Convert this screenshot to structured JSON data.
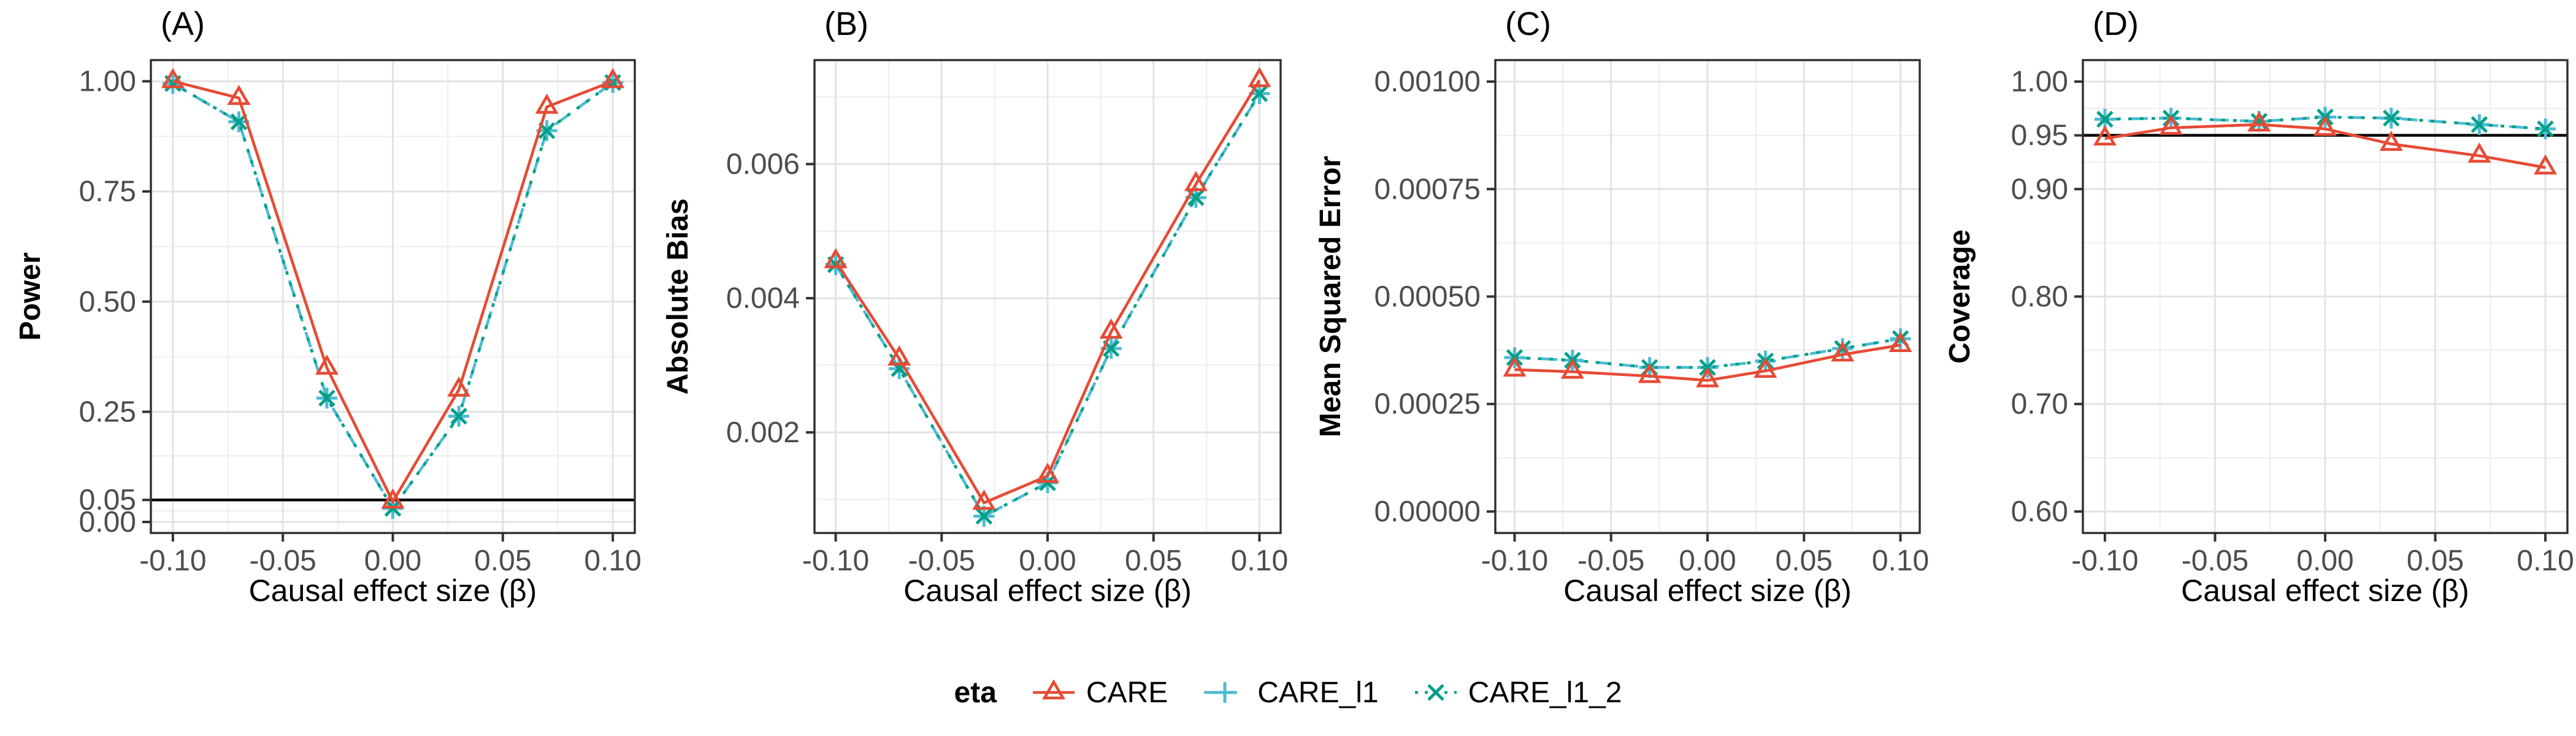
{
  "legend": {
    "title": "eta",
    "items": [
      "CARE",
      "CARE_l1",
      "CARE_l1_2"
    ]
  },
  "series_styles": [
    {
      "name": "CARE",
      "color": "#E64B35",
      "marker": "triangle",
      "linetype": "solid"
    },
    {
      "name": "CARE_l1",
      "color": "#4DBBD5",
      "marker": "plus",
      "linetype": "dashed"
    },
    {
      "name": "CARE_l1_2",
      "color": "#00A087",
      "marker": "x",
      "linetype": "dotted"
    }
  ],
  "colors": {
    "reference_line": "#000000",
    "grid_major": "#E3E3E3",
    "grid_minor": "#F0F0F0",
    "panel_border": "#2E2E2E",
    "axis_text": "#4d4d4d"
  },
  "chart_data": [
    {
      "type": "line",
      "panel_label": "(A)",
      "ylabel": "Power",
      "xlabel": "Causal effect size (β)",
      "x": [
        -0.1,
        -0.07,
        -0.03,
        0.0,
        0.03,
        0.07,
        0.1
      ],
      "xticks": [
        -0.1,
        -0.05,
        0.0,
        0.05,
        0.1
      ],
      "xtick_labels": [
        "-0.10",
        "-0.05",
        "0.00",
        "0.05",
        "0.10"
      ],
      "xlim": [
        -0.11,
        0.11
      ],
      "yticks": [
        0.0,
        0.05,
        0.25,
        0.5,
        0.75,
        1.0
      ],
      "ytick_labels": [
        "0.00",
        "0.05",
        "0.25",
        "0.50",
        "0.75",
        "1.00"
      ],
      "ylim": [
        -0.025,
        1.048
      ],
      "ref_line": 0.05,
      "grid": true,
      "legend_position": "bottom",
      "series": [
        {
          "name": "CARE",
          "values": [
            1.0,
            0.962,
            0.35,
            0.046,
            0.3,
            0.942,
            1.0
          ]
        },
        {
          "name": "CARE_l1",
          "values": [
            0.995,
            0.908,
            0.281,
            0.031,
            0.24,
            0.888,
            0.997
          ]
        },
        {
          "name": "CARE_l1_2",
          "values": [
            0.995,
            0.908,
            0.281,
            0.031,
            0.24,
            0.888,
            0.997
          ]
        }
      ]
    },
    {
      "type": "line",
      "panel_label": "(B)",
      "ylabel": "Absolute Bias",
      "xlabel": "Causal effect size (β)",
      "x": [
        -0.1,
        -0.07,
        -0.03,
        0.0,
        0.03,
        0.07,
        0.1
      ],
      "xticks": [
        -0.1,
        -0.05,
        0.0,
        0.05,
        0.1
      ],
      "xtick_labels": [
        "-0.10",
        "-0.05",
        "0.00",
        "0.05",
        "0.10"
      ],
      "xlim": [
        -0.11,
        0.11
      ],
      "yticks": [
        0.002,
        0.004,
        0.006
      ],
      "ytick_labels": [
        "0.002",
        "0.004",
        "0.006"
      ],
      "ylim": [
        0.0005,
        0.00755
      ],
      "ref_line": null,
      "grid": true,
      "legend_position": "bottom",
      "series": [
        {
          "name": "CARE",
          "values": [
            0.00455,
            0.0031,
            0.00095,
            0.00135,
            0.0035,
            0.0057,
            0.00725
          ]
        },
        {
          "name": "CARE_l1",
          "values": [
            0.0045,
            0.00295,
            0.00075,
            0.00125,
            0.00325,
            0.0055,
            0.00705
          ]
        },
        {
          "name": "CARE_l1_2",
          "values": [
            0.0045,
            0.00295,
            0.00075,
            0.00125,
            0.00325,
            0.0055,
            0.00705
          ]
        }
      ]
    },
    {
      "type": "line",
      "panel_label": "(C)",
      "ylabel": "Mean Squared Error",
      "xlabel": "Causal effect size (β)",
      "x": [
        -0.1,
        -0.07,
        -0.03,
        0.0,
        0.03,
        0.07,
        0.1
      ],
      "xticks": [
        -0.1,
        -0.05,
        0.0,
        0.05,
        0.1
      ],
      "xtick_labels": [
        "-0.10",
        "-0.05",
        "0.00",
        "0.05",
        "0.10"
      ],
      "xlim": [
        -0.11,
        0.11
      ],
      "yticks": [
        0.0,
        0.00025,
        0.0005,
        0.00075,
        0.001
      ],
      "ytick_labels": [
        "0.00000",
        "0.00025",
        "0.00050",
        "0.00075",
        "0.00100"
      ],
      "ylim": [
        -5e-05,
        0.00105
      ],
      "ref_line": null,
      "grid": true,
      "legend_position": "bottom",
      "series": [
        {
          "name": "CARE",
          "values": [
            0.00033,
            0.000325,
            0.000315,
            0.000305,
            0.000327,
            0.000365,
            0.000387
          ]
        },
        {
          "name": "CARE_l1",
          "values": [
            0.000358,
            0.000352,
            0.000335,
            0.000335,
            0.00035,
            0.000379,
            0.000402
          ]
        },
        {
          "name": "CARE_l1_2",
          "values": [
            0.000358,
            0.000352,
            0.000335,
            0.000335,
            0.00035,
            0.000379,
            0.000402
          ]
        }
      ]
    },
    {
      "type": "line",
      "panel_label": "(D)",
      "ylabel": "Coverage",
      "xlabel": "Causal effect size (β)",
      "x": [
        -0.1,
        -0.07,
        -0.03,
        0.0,
        0.03,
        0.07,
        0.1
      ],
      "xticks": [
        -0.1,
        -0.05,
        0.0,
        0.05,
        0.1
      ],
      "xtick_labels": [
        "-0.10",
        "-0.05",
        "0.00",
        "0.05",
        "0.10"
      ],
      "xlim": [
        -0.11,
        0.11
      ],
      "yticks": [
        0.6,
        0.7,
        0.8,
        0.9,
        0.95,
        1.0
      ],
      "ytick_labels": [
        "0.60",
        "0.70",
        "0.80",
        "0.90",
        "0.95",
        "1.00"
      ],
      "ylim": [
        0.58,
        1.02
      ],
      "ref_line": 0.95,
      "grid": true,
      "legend_position": "bottom",
      "series": [
        {
          "name": "CARE",
          "values": [
            0.947,
            0.957,
            0.96,
            0.956,
            0.942,
            0.931,
            0.92
          ]
        },
        {
          "name": "CARE_l1",
          "values": [
            0.965,
            0.966,
            0.963,
            0.967,
            0.966,
            0.96,
            0.956
          ]
        },
        {
          "name": "CARE_l1_2",
          "values": [
            0.965,
            0.966,
            0.963,
            0.967,
            0.966,
            0.96,
            0.956
          ]
        }
      ]
    }
  ]
}
